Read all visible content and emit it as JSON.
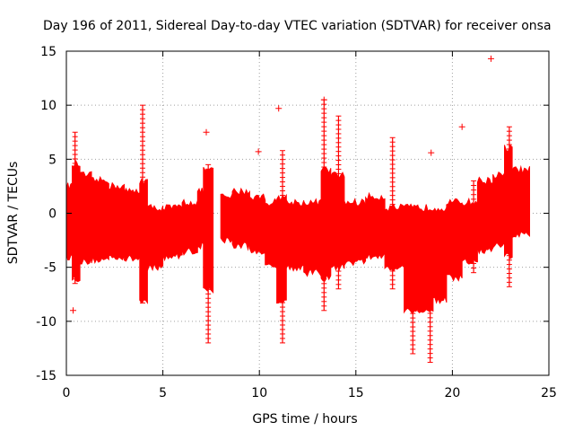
{
  "chart_data": {
    "type": "scatter",
    "title": "Day 196 of 2011, Sidereal Day-to-day VTEC variation (SDTVAR) for receiver onsa",
    "xlabel": "GPS time / hours",
    "ylabel": "SDTVAR / TECUs",
    "xlim": [
      0,
      25
    ],
    "ylim": [
      -15,
      15
    ],
    "x_ticks": [
      "0",
      "5",
      "10",
      "15",
      "20",
      "25"
    ],
    "y_ticks": [
      "15",
      "10",
      "5",
      "0",
      "-5",
      "-10",
      "-15"
    ],
    "grid": true,
    "series_color": "#ff0000",
    "marker": "plus",
    "bands": [
      {
        "x0": 0.0,
        "x1": 0.3,
        "lo": -4.0,
        "hi": 2.5
      },
      {
        "x0": 0.3,
        "x1": 0.7,
        "lo": -6.0,
        "hi": 4.5
      },
      {
        "x0": 0.7,
        "x1": 1.3,
        "lo": -4.5,
        "hi": 3.5
      },
      {
        "x0": 1.3,
        "x1": 2.2,
        "lo": -4.3,
        "hi": 3.0
      },
      {
        "x0": 2.2,
        "x1": 3.0,
        "lo": -4.0,
        "hi": 2.5
      },
      {
        "x0": 3.0,
        "x1": 3.8,
        "lo": -4.2,
        "hi": 2.0
      },
      {
        "x0": 3.8,
        "x1": 4.2,
        "lo": -8.0,
        "hi": 3.0
      },
      {
        "x0": 4.2,
        "x1": 5.0,
        "lo": -5.0,
        "hi": 0.5
      },
      {
        "x0": 5.0,
        "x1": 6.0,
        "lo": -4.0,
        "hi": 0.5
      },
      {
        "x0": 6.0,
        "x1": 6.8,
        "lo": -3.5,
        "hi": 1.0
      },
      {
        "x0": 6.8,
        "x1": 7.1,
        "lo": -3.0,
        "hi": 2.0
      },
      {
        "x0": 7.1,
        "x1": 7.6,
        "lo": -7.0,
        "hi": 4.0
      },
      {
        "x0": 8.0,
        "x1": 8.6,
        "lo": -2.5,
        "hi": 1.5
      },
      {
        "x0": 8.6,
        "x1": 9.5,
        "lo": -3.0,
        "hi": 2.0
      },
      {
        "x0": 9.5,
        "x1": 10.3,
        "lo": -3.5,
        "hi": 1.5
      },
      {
        "x0": 10.3,
        "x1": 10.9,
        "lo": -5.0,
        "hi": 1.0
      },
      {
        "x0": 10.9,
        "x1": 11.4,
        "lo": -8.0,
        "hi": 1.5
      },
      {
        "x0": 11.4,
        "x1": 12.3,
        "lo": -5.0,
        "hi": 1.0
      },
      {
        "x0": 12.3,
        "x1": 13.2,
        "lo": -5.5,
        "hi": 1.0
      },
      {
        "x0": 13.2,
        "x1": 13.7,
        "lo": -6.0,
        "hi": 4.0
      },
      {
        "x0": 13.7,
        "x1": 14.4,
        "lo": -5.0,
        "hi": 3.5
      },
      {
        "x0": 14.4,
        "x1": 15.5,
        "lo": -4.5,
        "hi": 1.0
      },
      {
        "x0": 15.5,
        "x1": 16.5,
        "lo": -4.0,
        "hi": 1.5
      },
      {
        "x0": 16.5,
        "x1": 17.5,
        "lo": -5.0,
        "hi": 0.5
      },
      {
        "x0": 17.5,
        "x1": 18.2,
        "lo": -9.0,
        "hi": 0.5
      },
      {
        "x0": 18.2,
        "x1": 19.0,
        "lo": -9.0,
        "hi": 0.5
      },
      {
        "x0": 19.0,
        "x1": 19.7,
        "lo": -8.0,
        "hi": 0.5
      },
      {
        "x0": 19.7,
        "x1": 20.5,
        "lo": -6.0,
        "hi": 1.0
      },
      {
        "x0": 20.5,
        "x1": 21.3,
        "lo": -4.5,
        "hi": 1.0
      },
      {
        "x0": 21.3,
        "x1": 22.1,
        "lo": -3.5,
        "hi": 3.0
      },
      {
        "x0": 22.1,
        "x1": 22.7,
        "lo": -3.0,
        "hi": 3.5
      },
      {
        "x0": 22.7,
        "x1": 23.1,
        "lo": -4.0,
        "hi": 6.0
      },
      {
        "x0": 23.1,
        "x1": 24.0,
        "lo": -2.0,
        "hi": 4.0
      }
    ],
    "spikes": [
      {
        "x": 0.45,
        "lo": -6.5,
        "hi": 7.5
      },
      {
        "x": 3.95,
        "lo": -8.3,
        "hi": 10.0
      },
      {
        "x": 7.35,
        "lo": -12.0,
        "hi": 4.5
      },
      {
        "x": 11.2,
        "lo": -12.0,
        "hi": 5.8
      },
      {
        "x": 13.35,
        "lo": -9.0,
        "hi": 10.5
      },
      {
        "x": 14.1,
        "lo": -7.0,
        "hi": 9.0
      },
      {
        "x": 16.9,
        "lo": -7.0,
        "hi": 7.0
      },
      {
        "x": 17.95,
        "lo": -13.0,
        "hi": -1.0
      },
      {
        "x": 18.85,
        "lo": -13.8,
        "hi": -1.0
      },
      {
        "x": 21.1,
        "lo": -5.5,
        "hi": 3.0
      },
      {
        "x": 22.95,
        "lo": -6.8,
        "hi": 8.0
      }
    ],
    "points": [
      {
        "x": 0.35,
        "y": -9.0
      },
      {
        "x": 7.25,
        "y": 7.5
      },
      {
        "x": 9.95,
        "y": 5.7
      },
      {
        "x": 11.0,
        "y": 9.7
      },
      {
        "x": 13.35,
        "y": 10.5
      },
      {
        "x": 18.9,
        "y": 5.6
      },
      {
        "x": 20.5,
        "y": 8.0
      },
      {
        "x": 22.0,
        "y": 14.3
      }
    ]
  }
}
